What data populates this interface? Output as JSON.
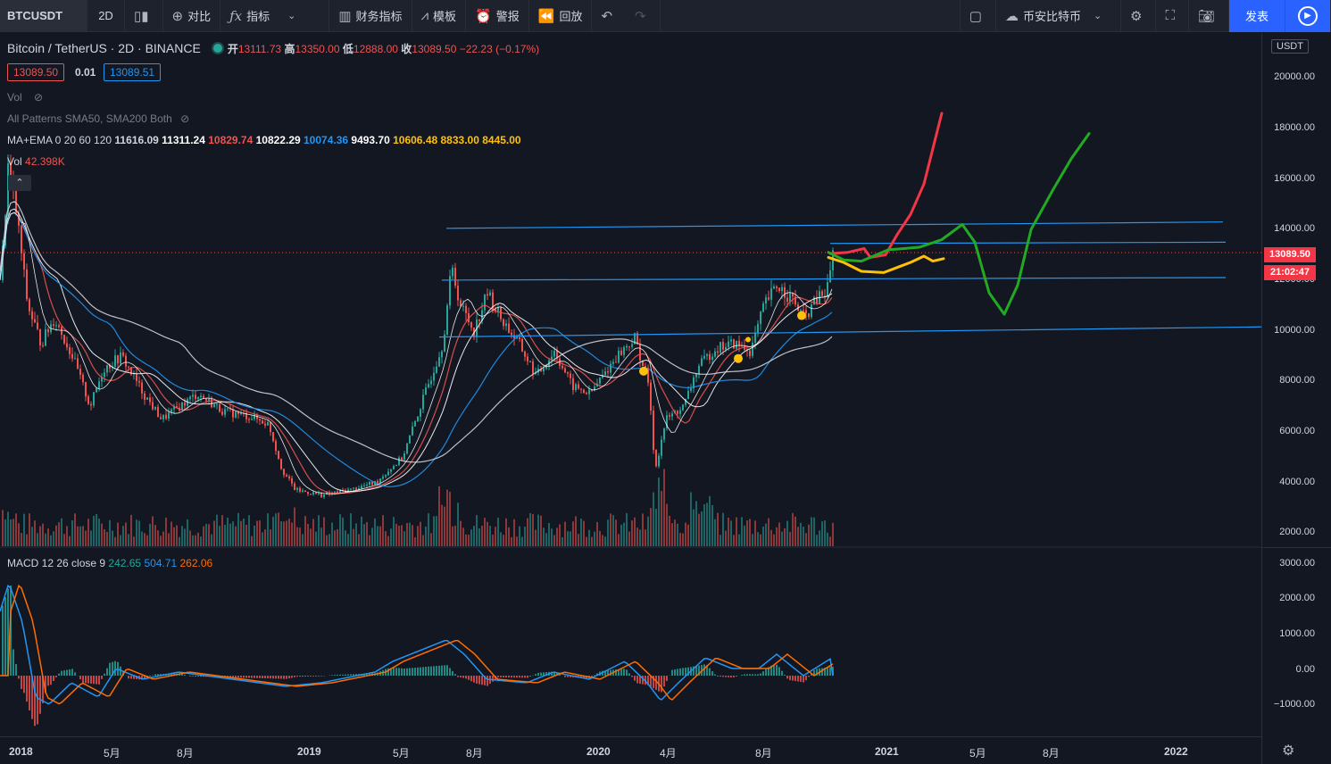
{
  "toolbar": {
    "symbol": "BTCUSDT",
    "interval": "2D",
    "compare": "对比",
    "indicators": "指标",
    "financials": "财务指标",
    "templates": "模板",
    "alert": "警报",
    "replay": "回放",
    "exchange": "币安比特币",
    "publish": "发表"
  },
  "legend": {
    "title": "Bitcoin / TetherUS · 2D · BINANCE",
    "open_label": "开",
    "open": "13111.73",
    "high_label": "高",
    "high": "13350.00",
    "low_label": "低",
    "low": "12888.00",
    "close_label": "收",
    "close": "13089.50",
    "change": "−22.23 (−0.17%)",
    "sell_price": "13089.50",
    "spread": "0.01",
    "buy_price": "13089.51",
    "vol_label": "Vol",
    "patterns_label": "All Patterns SMA50, SMA200 Both",
    "ma_label": "MA+EMA 0 20 60 120",
    "ma_values": [
      {
        "v": "11616.09",
        "c": "#d1d4dc"
      },
      {
        "v": "11311.24",
        "c": "#ffffff"
      },
      {
        "v": "10829.74",
        "c": "#ef5350"
      },
      {
        "v": "10822.29",
        "c": "#ffffff"
      },
      {
        "v": "10074.36",
        "c": "#2196f3"
      },
      {
        "v": "9493.70",
        "c": "#ffffff"
      },
      {
        "v": "10606.48",
        "c": "#ffc107"
      },
      {
        "v": "8833.00",
        "c": "#ffc107"
      },
      {
        "v": "8445.00",
        "c": "#ffc107"
      }
    ],
    "vol2_label": "Vol",
    "vol2_value": "42.398K",
    "macd_label": "MACD 12 26 close 9",
    "macd_hist": "242.65",
    "macd_line": "504.71",
    "macd_signal": "262.06"
  },
  "axis": {
    "currency": "USDT",
    "price_ticks": [
      "20000.00",
      "18000.00",
      "16000.00",
      "14000.00",
      "12000.00",
      "10000.00",
      "8000.00",
      "6000.00",
      "4000.00",
      "2000.00"
    ],
    "macd_ticks": [
      "3000.00",
      "2000.00",
      "1000.00",
      "0.00",
      "−1000.00"
    ],
    "current_price": "13089.50",
    "countdown": "21:02:47",
    "date_ticks": [
      "2018",
      "5月",
      "8月",
      "2019",
      "5月",
      "8月",
      "2020",
      "4月",
      "8月",
      "2021",
      "5月",
      "8月",
      "2022"
    ]
  },
  "colors": {
    "background": "#131722",
    "up": "#26a69a",
    "down": "#ef5350",
    "accent": "#2962ff",
    "trendline": "#2196f3"
  }
}
